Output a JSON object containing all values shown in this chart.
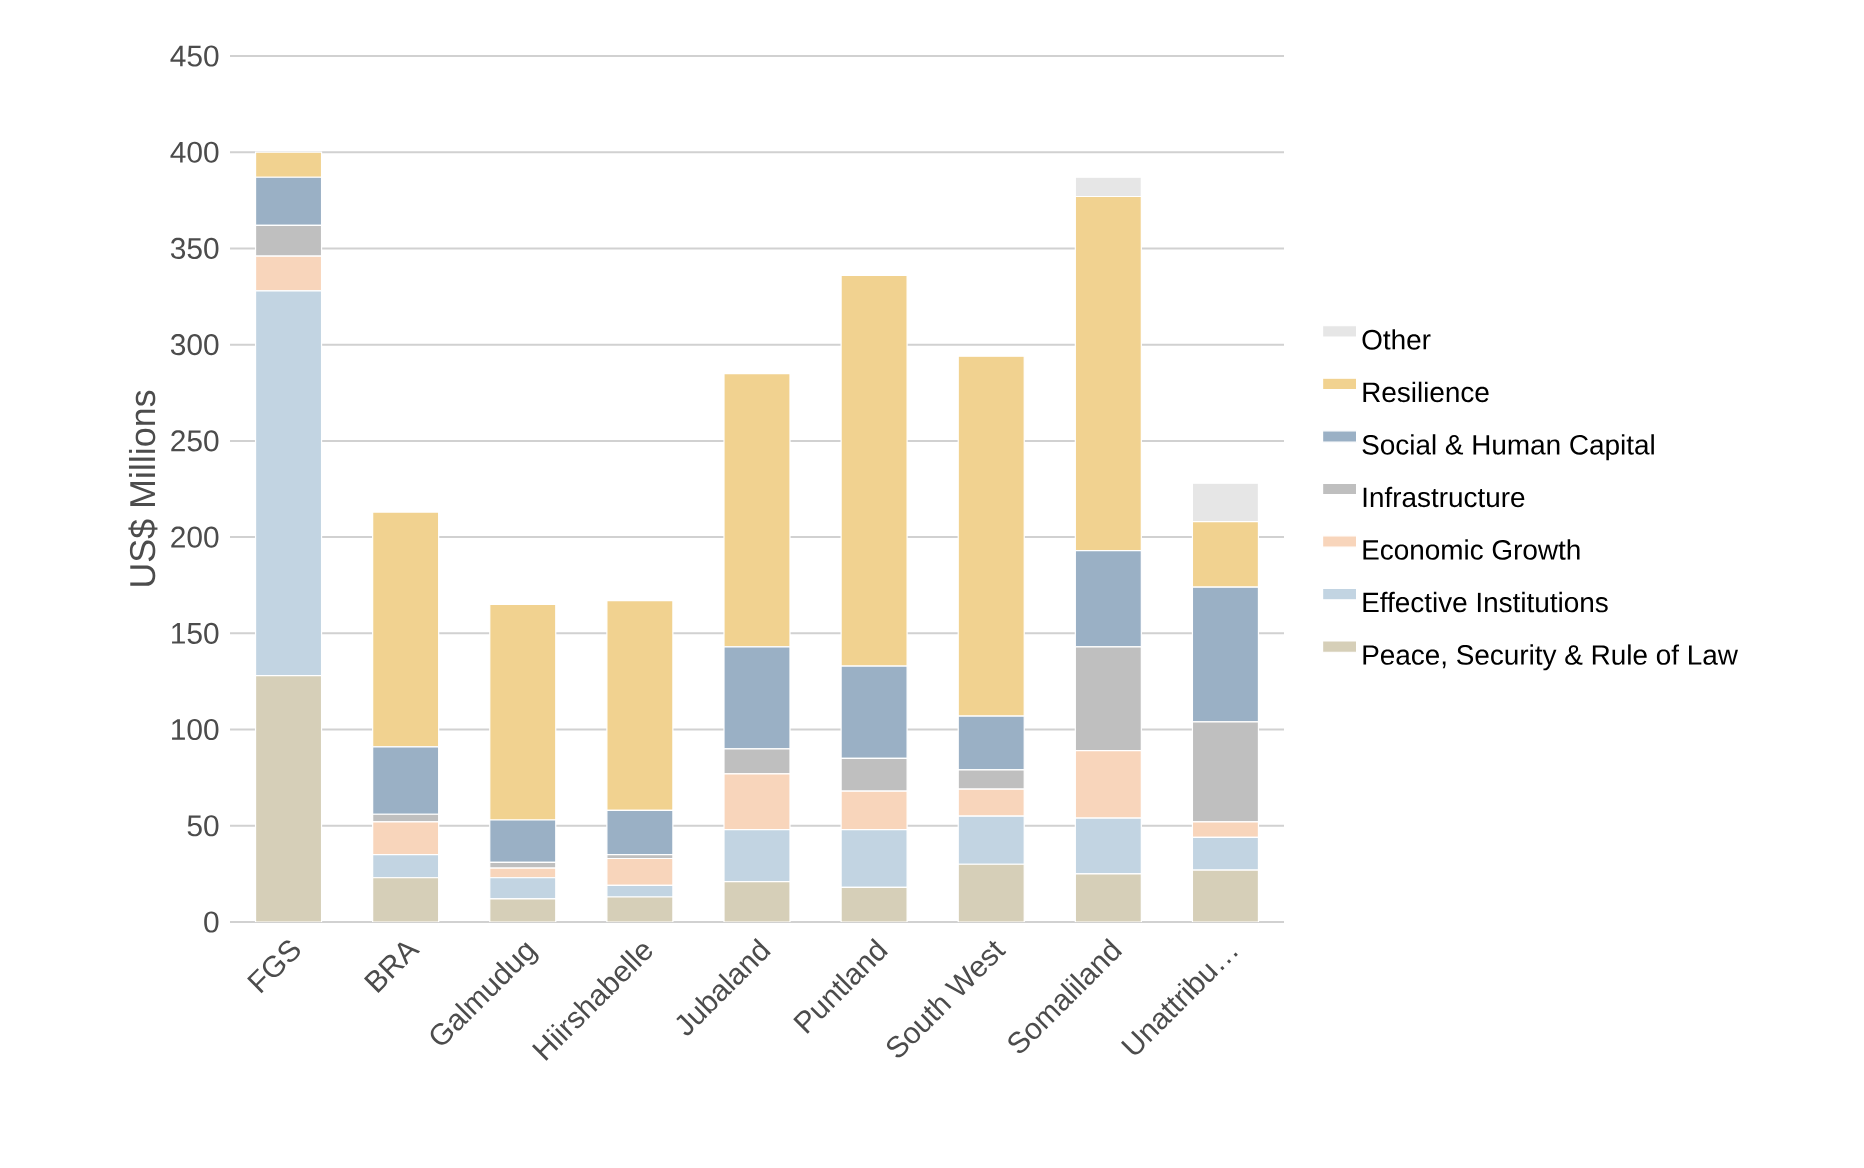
{
  "chart_data": {
    "type": "bar",
    "stacked": true,
    "ylabel": "US$ Millions",
    "categories": [
      "FGS",
      "BRA",
      "Galmudug",
      "Hiirshabelle",
      "Jubaland",
      "Puntland",
      "South West",
      "Somaliland",
      "Unattribu…"
    ],
    "series": [
      {
        "name": "Peace, Security & Rule of Law",
        "color": "#d6cfb8",
        "values": [
          128,
          23,
          12,
          13,
          21,
          18,
          30,
          25,
          27
        ]
      },
      {
        "name": "Effective Institutions",
        "color": "#c2d4e2",
        "values": [
          200,
          12,
          11,
          6,
          27,
          30,
          25,
          29,
          17
        ]
      },
      {
        "name": "Economic Growth",
        "color": "#f8d5bb",
        "values": [
          18,
          17,
          5,
          14,
          29,
          20,
          14,
          35,
          8
        ]
      },
      {
        "name": "Infrastructure",
        "color": "#bfbfbf",
        "values": [
          16,
          4,
          3,
          2,
          13,
          17,
          10,
          54,
          52
        ]
      },
      {
        "name": "Social & Human Capital",
        "color": "#9ab0c5",
        "values": [
          25,
          35,
          22,
          23,
          53,
          48,
          28,
          50,
          70
        ]
      },
      {
        "name": "Resilience",
        "color": "#f1d290",
        "values": [
          13,
          122,
          112,
          109,
          142,
          203,
          187,
          184,
          34
        ]
      },
      {
        "name": "Other",
        "color": "#e6e6e6",
        "values": [
          0,
          0,
          0,
          0,
          0,
          0,
          0,
          10,
          20
        ]
      }
    ],
    "ylim": [
      0,
      450
    ],
    "yticks": [
      0,
      50,
      100,
      150,
      200,
      250,
      300,
      350,
      400,
      450
    ],
    "grid": "y",
    "legend": "right"
  }
}
